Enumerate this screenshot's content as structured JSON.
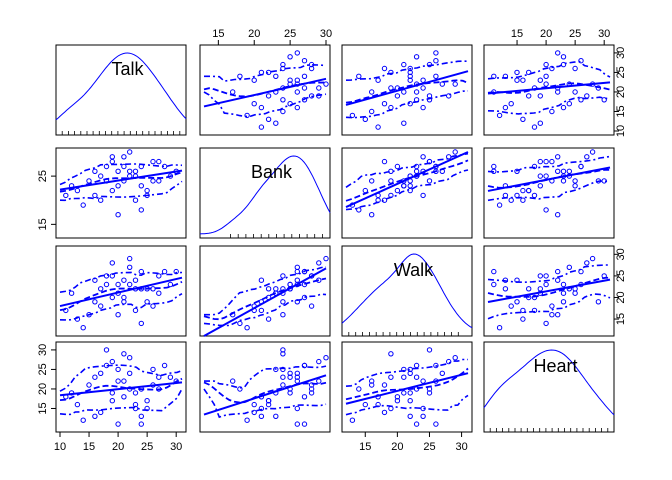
{
  "chart_data": {
    "type": "scatter",
    "variables": [
      "Talk",
      "Bank",
      "Walk",
      "Heart"
    ],
    "colors": {
      "points": "#0000ff",
      "lines": "#0000ff",
      "density": "#0000ff",
      "axis": "#000000",
      "background": "#ffffff"
    },
    "diagonal": "density",
    "smoother": "loess with spread",
    "axes": {
      "Talk": {
        "range": [
          10,
          31
        ],
        "ticks": [
          10,
          15,
          20,
          25,
          30
        ],
        "tick_labels": [
          "10",
          "15",
          "20",
          "25",
          "30"
        ]
      },
      "Bank": {
        "range": [
          13,
          30
        ],
        "ticks": [
          15,
          25
        ],
        "tick_labels": [
          "15",
          "25"
        ]
      },
      "Walk": {
        "range": [
          12,
          31
        ],
        "ticks": [
          15,
          20,
          25,
          30
        ],
        "tick_labels": [
          "15",
          "20",
          "25",
          "30"
        ]
      },
      "Heart": {
        "range": [
          10,
          31
        ],
        "ticks": [
          15,
          20,
          25,
          30
        ],
        "tick_labels": [
          "15",
          "20",
          "25",
          "30"
        ]
      }
    },
    "top_axis_columns": [
      "Bank",
      "Heart"
    ],
    "top_axis_ticks": {
      "Bank": [
        "15",
        "20",
        "25",
        "30"
      ],
      "Heart": [
        "15",
        "20",
        "25",
        "30"
      ]
    },
    "right_axis_rows": [
      "Talk",
      "Walk"
    ],
    "left_axis_rows": [
      "Bank",
      "Heart"
    ],
    "bottom_axis_columns": [
      "Talk",
      "Walk"
    ],
    "observations": [
      {
        "Talk": 23,
        "Bank": 25,
        "Walk": 22,
        "Heart": 19
      },
      {
        "Talk": 19,
        "Bank": 22,
        "Walk": 20,
        "Heart": 17
      },
      {
        "Talk": 21,
        "Bank": 29,
        "Walk": 24,
        "Heart": 22
      },
      {
        "Talk": 17,
        "Bank": 20,
        "Walk": 18,
        "Heart": 14
      },
      {
        "Talk": 26,
        "Bank": 24,
        "Walk": 22,
        "Heart": 25
      },
      {
        "Talk": 13,
        "Bank": 22,
        "Walk": 15,
        "Heart": 16
      },
      {
        "Talk": 16,
        "Bank": 26,
        "Walk": 19,
        "Heart": 23
      },
      {
        "Talk": 11,
        "Bank": 21,
        "Walk": 17,
        "Heart": 18
      },
      {
        "Talk": 27,
        "Bank": 28,
        "Walk": 25,
        "Heart": 20
      },
      {
        "Talk": 20,
        "Bank": 26,
        "Walk": 23,
        "Heart": 11
      },
      {
        "Talk": 24,
        "Bank": 23,
        "Walk": 22,
        "Heart": 13
      },
      {
        "Talk": 15,
        "Bank": 24,
        "Walk": 16,
        "Heart": 21
      },
      {
        "Talk": 28,
        "Bank": 27,
        "Walk": 26,
        "Heart": 26
      },
      {
        "Talk": 12,
        "Bank": 23,
        "Walk": 21,
        "Heart": 19
      },
      {
        "Talk": 22,
        "Bank": 26,
        "Walk": 27,
        "Heart": 24
      },
      {
        "Talk": 19,
        "Bank": 29,
        "Walk": 28,
        "Heart": 27
      },
      {
        "Talk": 25,
        "Bank": 21,
        "Walk": 19,
        "Heart": 15
      },
      {
        "Talk": 18,
        "Bank": 24,
        "Walk": 25,
        "Heart": 30
      },
      {
        "Talk": 23,
        "Bank": 20,
        "Walk": 17,
        "Heart": 16
      },
      {
        "Talk": 14,
        "Bank": 19,
        "Walk": 13,
        "Heart": 12
      },
      {
        "Talk": 29,
        "Bank": 25,
        "Walk": 23,
        "Heart": 23
      },
      {
        "Talk": 21,
        "Bank": 27,
        "Walk": 20,
        "Heart": 18
      },
      {
        "Talk": 17,
        "Bank": 25,
        "Walk": 22,
        "Heart": 24
      },
      {
        "Talk": 30,
        "Bank": 26,
        "Walk": 26,
        "Heart": 22
      },
      {
        "Talk": 24,
        "Bank": 18,
        "Walk": 14,
        "Heart": 20
      },
      {
        "Talk": 20,
        "Bank": 23,
        "Walk": 21,
        "Heart": 25
      },
      {
        "Talk": 22,
        "Bank": 30,
        "Walk": 29,
        "Heart": 28
      },
      {
        "Talk": 16,
        "Bank": 21,
        "Walk": 24,
        "Heart": 13
      },
      {
        "Talk": 26,
        "Bank": 28,
        "Walk": 18,
        "Heart": 21
      },
      {
        "Talk": 18,
        "Bank": 27,
        "Walk": 23,
        "Heart": 26
      },
      {
        "Talk": 25,
        "Bank": 22,
        "Walk": 22,
        "Heart": 17
      },
      {
        "Talk": 21,
        "Bank": 24,
        "Walk": 19,
        "Heart": 29
      },
      {
        "Talk": 19,
        "Bank": 28,
        "Walk": 25,
        "Heart": 19
      },
      {
        "Talk": 23,
        "Bank": 26,
        "Walk": 24,
        "Heart": 15
      },
      {
        "Talk": 27,
        "Bank": 24,
        "Walk": 21,
        "Heart": 23
      },
      {
        "Talk": 20,
        "Bank": 17,
        "Walk": 16,
        "Heart": 22
      },
      {
        "Talk": 24,
        "Bank": 27,
        "Walk": 26,
        "Heart": 11
      },
      {
        "Talk": 22,
        "Bank": 25,
        "Walk": 23,
        "Heart": 20
      }
    ],
    "grid": false,
    "legend": "none"
  }
}
